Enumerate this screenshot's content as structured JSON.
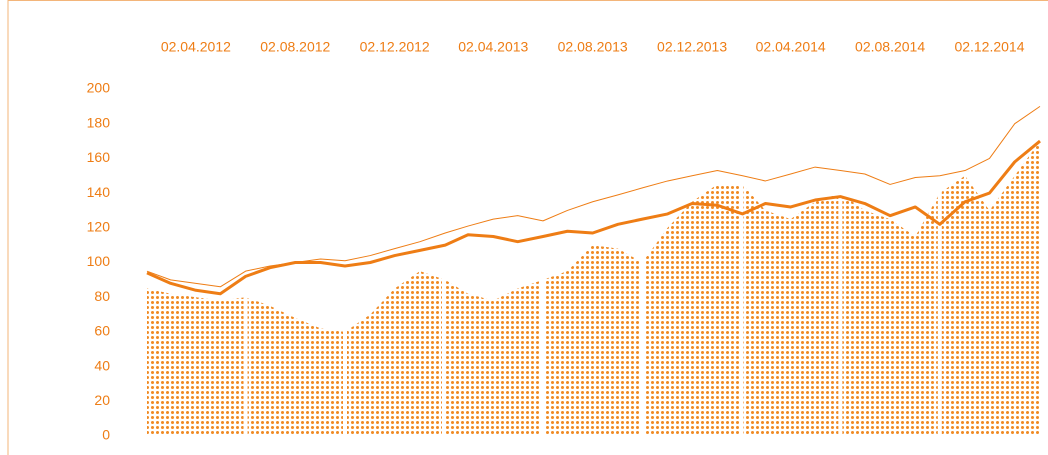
{
  "chart_data": {
    "type": "line",
    "x": [
      "02.02.2012",
      "02.03.2012",
      "02.04.2012",
      "02.05.2012",
      "02.06.2012",
      "02.07.2012",
      "02.08.2012",
      "02.09.2012",
      "02.10.2012",
      "02.11.2012",
      "02.12.2012",
      "02.01.2013",
      "02.02.2013",
      "02.03.2013",
      "02.04.2013",
      "02.05.2013",
      "02.06.2013",
      "02.07.2013",
      "02.08.2013",
      "02.09.2013",
      "02.10.2013",
      "02.11.2013",
      "02.12.2013",
      "02.01.2014",
      "02.02.2014",
      "02.03.2014",
      "02.04.2014",
      "02.05.2014",
      "02.06.2014",
      "02.07.2014",
      "02.08.2014",
      "02.09.2014",
      "02.10.2014",
      "02.11.2014",
      "02.12.2014",
      "02.01.2015",
      "02.02.2015"
    ],
    "series": [
      {
        "kind": "area",
        "color": "#f08a24",
        "values": [
          85,
          82,
          80,
          78,
          80,
          75,
          68,
          62,
          60,
          70,
          85,
          95,
          90,
          82,
          78,
          85,
          90,
          95,
          110,
          108,
          100,
          120,
          135,
          145,
          145,
          130,
          125,
          135,
          140,
          130,
          125,
          115,
          140,
          150,
          130,
          150,
          170
        ]
      },
      {
        "kind": "line",
        "width": 1,
        "color": "#ee7d15",
        "values": [
          95,
          90,
          88,
          86,
          95,
          98,
          100,
          102,
          101,
          104,
          108,
          112,
          117,
          121,
          125,
          127,
          124,
          130,
          135,
          139,
          143,
          147,
          150,
          153,
          150,
          147,
          151,
          155,
          153,
          151,
          145,
          149,
          150,
          153,
          160,
          180,
          190
        ]
      },
      {
        "kind": "line",
        "width": 3,
        "color": "#ee7d15",
        "values": [
          94,
          88,
          84,
          82,
          92,
          97,
          100,
          100,
          98,
          100,
          104,
          107,
          110,
          116,
          115,
          112,
          115,
          118,
          117,
          122,
          125,
          128,
          134,
          133,
          128,
          134,
          132,
          136,
          138,
          134,
          127,
          132,
          122,
          135,
          140,
          158,
          170
        ]
      }
    ],
    "xlim": [
      "02.02.2012",
      "02.02.2015"
    ],
    "xticks": [
      "02.04.2012",
      "02.08.2012",
      "02.12.2012",
      "02.04.2013",
      "02.08.2013",
      "02.12.2013",
      "02.04.2014",
      "02.08.2014",
      "02.12.2014"
    ],
    "ylim": [
      0,
      200
    ],
    "yticks": [
      0,
      20,
      40,
      60,
      80,
      100,
      120,
      140,
      160,
      180,
      200
    ],
    "color": "#ee7d15"
  }
}
